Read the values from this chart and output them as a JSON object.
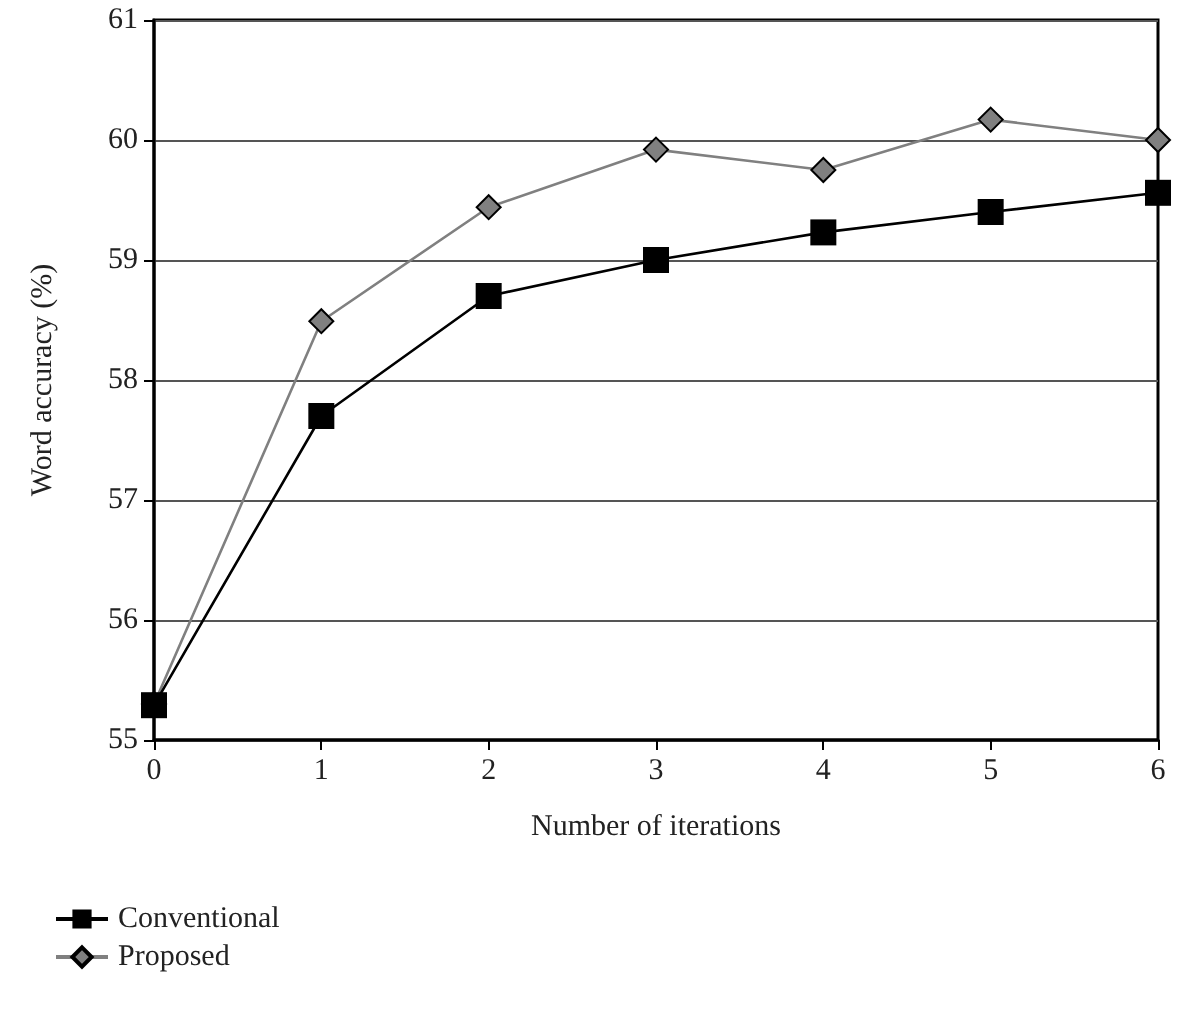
{
  "chart_data": {
    "type": "line",
    "xlabel": "Number of iterations",
    "ylabel": "Word accuracy (%)",
    "x": [
      0,
      1,
      2,
      3,
      4,
      5,
      6
    ],
    "series": [
      {
        "name": "Conventional",
        "color": "#000000",
        "marker": "square",
        "values": [
          55.29,
          57.7,
          58.7,
          59.0,
          59.23,
          59.4,
          59.56
        ]
      },
      {
        "name": "Proposed",
        "color": "#808080",
        "marker": "diamond",
        "values": [
          55.3,
          58.49,
          59.44,
          59.92,
          59.75,
          60.17,
          60.0
        ]
      }
    ],
    "xlim": [
      0,
      6
    ],
    "xticks": [
      0,
      1,
      2,
      3,
      4,
      5,
      6
    ],
    "ylim": [
      55,
      61
    ],
    "yticks": [
      55,
      56,
      57,
      58,
      59,
      60,
      61
    ],
    "grid": "y",
    "legend": "bottom left"
  }
}
